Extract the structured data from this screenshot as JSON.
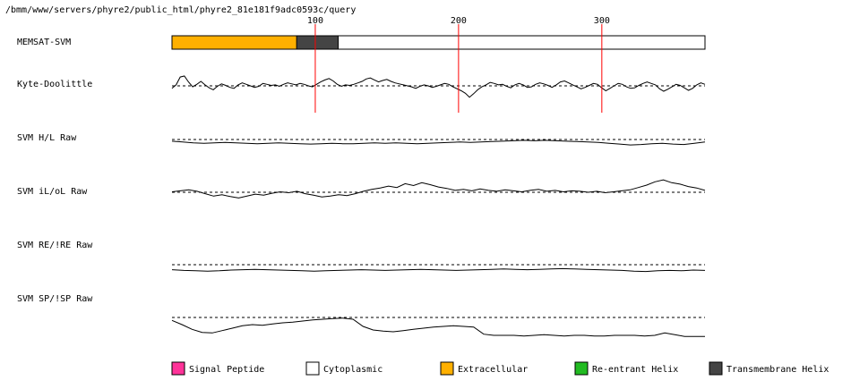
{
  "header": {
    "path": "/bmm/www/servers/phyre2/public_html/phyre2_81e181f9adc0593c/query"
  },
  "chart_data": {
    "type": "line",
    "sequence_length": 372,
    "xticks": [
      100,
      200,
      300
    ],
    "topology": {
      "name": "MEMSAT-SVM",
      "segments": [
        {
          "type": "Extracellular",
          "start": 1,
          "end": 88
        },
        {
          "type": "Transmembrane Helix",
          "start": 88,
          "end": 117
        },
        {
          "type": "Cytoplasmic",
          "start": 117,
          "end": 372
        }
      ]
    },
    "tracks": [
      {
        "name": "Kyte-Doolittle",
        "baseline": 0,
        "ylim": [
          -4,
          4
        ],
        "values": [
          -0.5,
          0.2,
          1.8,
          2.0,
          0.8,
          -0.2,
          0.3,
          0.9,
          0.2,
          -0.4,
          -0.8,
          -0.1,
          0.4,
          0.1,
          -0.3,
          -0.5,
          0.2,
          0.6,
          0.3,
          0.0,
          -0.3,
          -0.1,
          0.5,
          0.3,
          0.1,
          0.2,
          -0.1,
          0.3,
          0.6,
          0.4,
          0.2,
          0.5,
          0.3,
          0.0,
          -0.2,
          0.3,
          0.8,
          1.2,
          1.5,
          1.0,
          0.3,
          -0.1,
          0.2,
          0.1,
          0.3,
          0.6,
          0.9,
          1.4,
          1.6,
          1.2,
          0.8,
          1.1,
          1.3,
          0.9,
          0.6,
          0.4,
          0.2,
          0.0,
          -0.2,
          -0.5,
          -0.1,
          0.2,
          0.0,
          -0.3,
          -0.1,
          0.2,
          0.5,
          0.3,
          -0.2,
          -0.6,
          -1.0,
          -1.5,
          -2.3,
          -1.6,
          -0.8,
          -0.2,
          0.2,
          0.7,
          0.5,
          0.2,
          0.3,
          -0.1,
          -0.4,
          0.2,
          0.5,
          0.2,
          -0.3,
          -0.2,
          0.3,
          0.6,
          0.4,
          0.1,
          -0.3,
          0.2,
          0.8,
          1.0,
          0.6,
          0.2,
          -0.2,
          -0.6,
          -0.3,
          0.1,
          0.5,
          0.3,
          -0.4,
          -1.0,
          -0.5,
          0.0,
          0.5,
          0.3,
          -0.2,
          -0.5,
          -0.4,
          0.1,
          0.5,
          0.8,
          0.5,
          0.2,
          -0.6,
          -1.1,
          -0.7,
          -0.2,
          0.3,
          0.1,
          -0.4,
          -0.9,
          -0.5,
          0.2,
          0.6,
          0.3
        ]
      },
      {
        "name": "SVM H/L Raw",
        "baseline": 0,
        "ylim": [
          -3,
          3
        ],
        "values": [
          -0.4,
          -0.6,
          -0.8,
          -0.9,
          -0.8,
          -0.7,
          -0.8,
          -0.9,
          -1.0,
          -0.9,
          -0.8,
          -0.9,
          -1.0,
          -1.1,
          -1.0,
          -0.9,
          -1.0,
          -1.0,
          -0.9,
          -0.8,
          -0.9,
          -0.8,
          -0.9,
          -1.0,
          -0.9,
          -0.8,
          -0.7,
          -0.6,
          -0.7,
          -0.6,
          -0.5,
          -0.4,
          -0.3,
          -0.2,
          -0.3,
          -0.2,
          -0.3,
          -0.4,
          -0.5,
          -0.6,
          -0.7,
          -0.9,
          -1.1,
          -1.3,
          -1.2,
          -1.0,
          -0.9,
          -1.1,
          -1.2,
          -0.9,
          -0.6
        ]
      },
      {
        "name": "SVM iL/oL Raw",
        "baseline": 0,
        "ylim": [
          -3,
          3
        ],
        "values": [
          0.1,
          0.3,
          0.5,
          0.2,
          -0.3,
          -0.8,
          -0.5,
          -0.9,
          -1.2,
          -0.8,
          -0.4,
          -0.6,
          -0.2,
          0.1,
          -0.1,
          0.2,
          -0.3,
          -0.6,
          -1.0,
          -0.8,
          -0.5,
          -0.7,
          -0.3,
          0.2,
          0.6,
          0.9,
          1.3,
          1.0,
          1.8,
          1.4,
          2.0,
          1.6,
          1.1,
          0.8,
          0.4,
          0.6,
          0.3,
          0.7,
          0.4,
          0.2,
          0.5,
          0.3,
          0.1,
          0.4,
          0.6,
          0.2,
          0.4,
          0.1,
          0.3,
          0.2,
          0.0,
          0.2,
          -0.1,
          0.1,
          0.3,
          0.5,
          1.0,
          1.5,
          2.2,
          2.6,
          2.0,
          1.7,
          1.2,
          0.9,
          0.4
        ]
      },
      {
        "name": "SVM RE/!RE Raw",
        "baseline": 0,
        "ylim": [
          -3,
          3
        ],
        "values": [
          -1.4,
          -1.6,
          -1.7,
          -1.8,
          -1.7,
          -1.5,
          -1.4,
          -1.3,
          -1.4,
          -1.5,
          -1.6,
          -1.7,
          -1.8,
          -1.7,
          -1.6,
          -1.5,
          -1.4,
          -1.5,
          -1.6,
          -1.5,
          -1.4,
          -1.3,
          -1.4,
          -1.5,
          -1.6,
          -1.5,
          -1.4,
          -1.3,
          -1.2,
          -1.3,
          -1.4,
          -1.3,
          -1.2,
          -1.1,
          -1.2,
          -1.3,
          -1.4,
          -1.5,
          -1.6,
          -1.8,
          -1.9,
          -1.7,
          -1.6,
          -1.7,
          -1.5,
          -1.6
        ]
      },
      {
        "name": "SVM SP/!SP Raw",
        "baseline": 0,
        "ylim": [
          -4,
          2
        ],
        "values": [
          -0.5,
          -1.2,
          -2.0,
          -2.5,
          -2.6,
          -2.2,
          -1.8,
          -1.4,
          -1.2,
          -1.3,
          -1.1,
          -0.9,
          -0.8,
          -0.6,
          -0.4,
          -0.3,
          -0.2,
          -0.1,
          -0.3,
          -1.5,
          -2.1,
          -2.3,
          -2.4,
          -2.2,
          -2.0,
          -1.8,
          -1.6,
          -1.5,
          -1.4,
          -1.5,
          -1.6,
          -2.8,
          -3.0,
          -3.0,
          -3.0,
          -3.1,
          -3.0,
          -2.9,
          -3.0,
          -3.1,
          -3.0,
          -3.0,
          -3.1,
          -3.1,
          -3.0,
          -3.0,
          -3.0,
          -3.1,
          -3.0,
          -2.6,
          -2.9,
          -3.2,
          -3.2,
          -3.2
        ]
      }
    ],
    "legend": [
      {
        "label": "Signal Peptide",
        "color": "#ff3399"
      },
      {
        "label": "Cytoplasmic",
        "color": "#ffffff"
      },
      {
        "label": "Extracellular",
        "color": "#ffb000"
      },
      {
        "label": "Re-entrant Helix",
        "color": "#22bb22"
      },
      {
        "label": "Transmembrane Helix",
        "color": "#444444"
      }
    ],
    "colors": {
      "marker_line": "#ff0000",
      "trace": "#000000",
      "Extracellular": "#ffb000",
      "Transmembrane Helix": "#444444",
      "Cytoplasmic": "#ffffff",
      "Signal Peptide": "#ff3399",
      "Re-entrant Helix": "#22bb22"
    }
  }
}
